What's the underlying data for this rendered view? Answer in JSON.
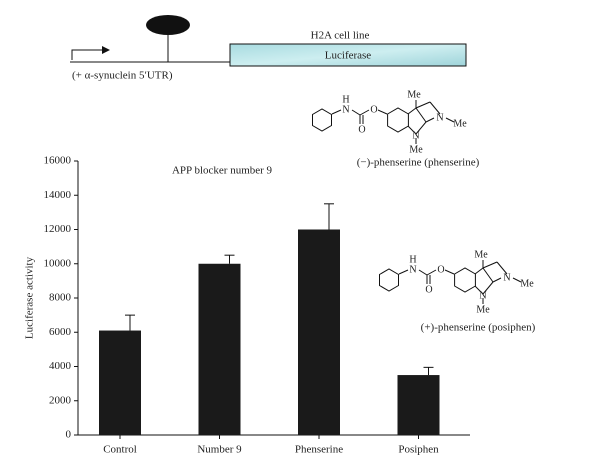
{
  "diagram": {
    "promoter_label": "(+ α-synuclein 5′UTR)",
    "cell_line": "H2A cell line",
    "reporter": "Luciferase"
  },
  "structures": [
    {
      "name": "(−)-phenserine (phenserine)",
      "atoms": [
        "H",
        "N",
        "O",
        "O",
        "Me",
        "N",
        "Me",
        "N",
        "Me"
      ]
    },
    {
      "name": "(+)-phenserine (posiphen)",
      "atoms": [
        "H",
        "N",
        "O",
        "O",
        "Me",
        "N",
        "Me",
        "N",
        "Me"
      ]
    }
  ],
  "chart_data": {
    "type": "bar",
    "title": "APP blocker number 9",
    "ylabel": "Luciferase activity",
    "categories": [
      "Control",
      "Number 9",
      "Phenserine",
      "Posiphen"
    ],
    "values": [
      6100,
      10000,
      12000,
      3500
    ],
    "errors": [
      900,
      500,
      1500,
      450
    ],
    "color": "#1a1a1a",
    "ylim": [
      0,
      16000
    ],
    "yticks": [
      0,
      2000,
      4000,
      6000,
      8000,
      10000,
      12000,
      14000,
      16000
    ]
  }
}
